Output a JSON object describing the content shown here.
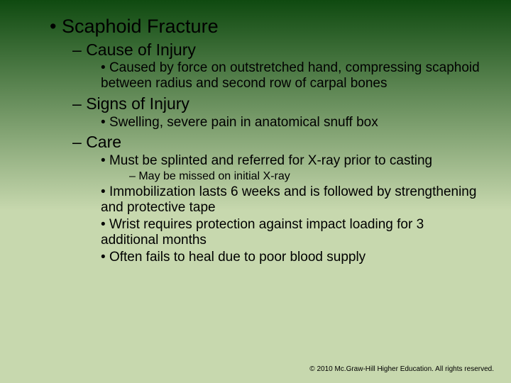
{
  "background": {
    "gradient_from": "#0f4a10",
    "gradient_to": "#c7d8ae",
    "gradient_stop_pct": 55
  },
  "title": "Scaphoid Fracture",
  "sections": {
    "cause_heading": "Cause of Injury",
    "cause_b1": "Caused by force on outstretched hand, compressing scaphoid between radius and second row of carpal bones",
    "signs_heading": "Signs of Injury",
    "signs_b1": "Swelling, severe pain in anatomical snuff box",
    "care_heading": "Care",
    "care_b1": "Must be splinted and referred for X-ray prior to casting",
    "care_b1_sub": "May be missed on initial X-ray",
    "care_b2": "Immobilization lasts 6 weeks and is followed by strengthening and protective tape",
    "care_b3": "Wrist requires protection against impact loading for 3 additional months",
    "care_b4": "Often fails to heal due to poor blood supply"
  },
  "copyright": "© 2010 Mc.Graw-Hill Higher Education.  All rights reserved."
}
